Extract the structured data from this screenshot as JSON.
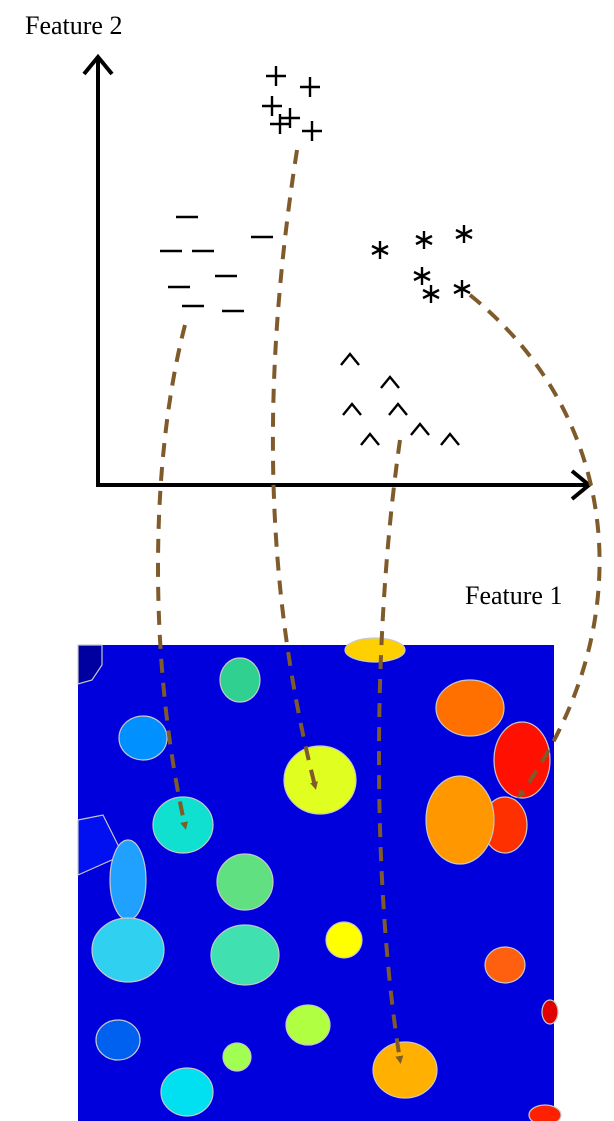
{
  "axes": {
    "y_label": "Feature 2",
    "x_label": "Feature 1"
  }
}
